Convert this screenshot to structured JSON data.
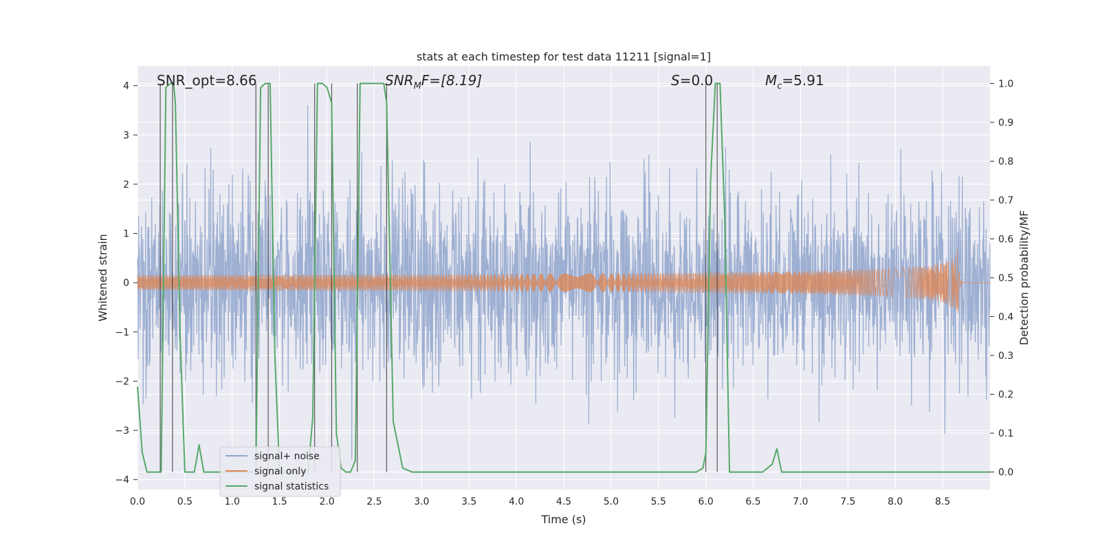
{
  "chart_data": {
    "type": "line",
    "title": "stats at each timestep for test data 11211 [signal=1]",
    "xlabel": "Time (s)",
    "ylabel_left": "Whitened strain",
    "ylabel_right": "Detection probability/MF",
    "xlim": [
      0.0,
      9.0
    ],
    "ylim_left": [
      -4.2,
      4.4
    ],
    "ylim_right": [
      -0.045,
      1.045
    ],
    "x_ticks": [
      "0.0",
      "0.5",
      "1.0",
      "1.5",
      "2.0",
      "2.5",
      "3.0",
      "3.5",
      "4.0",
      "4.5",
      "5.0",
      "5.5",
      "6.0",
      "6.5",
      "7.0",
      "7.5",
      "8.0",
      "8.5"
    ],
    "y_left_ticks": [
      "4",
      "3",
      "2",
      "1",
      "0",
      "−1",
      "−2",
      "−3",
      "−4"
    ],
    "y_right_ticks": [
      "1.0",
      "0.9",
      "0.8",
      "0.7",
      "0.6",
      "0.5",
      "0.4",
      "0.3",
      "0.2",
      "0.1",
      "0.0"
    ],
    "grid": true,
    "legend_position": "lower-left",
    "annotations": [
      {
        "prefix": "SNR_opt=8.66",
        "sub": "",
        "suffix": ""
      },
      {
        "prefix": "SNR",
        "sub": "M",
        "suffix": "F=[8.19]"
      },
      {
        "prefix": "S",
        "sub": "",
        "suffix": "=0.0"
      },
      {
        "prefix": "M",
        "sub": "c",
        "suffix": "=5.91"
      }
    ],
    "series": [
      {
        "name": "signal+ noise",
        "color": "#8fa4cc",
        "axis": "left",
        "kind": "noise",
        "envelope": 2.3,
        "peak": 3.6
      },
      {
        "name": "signal only",
        "color": "#dd8452",
        "axis": "left",
        "kind": "chirp",
        "amplitude_at_merger": 0.75,
        "merger_time": 8.66
      },
      {
        "name": "signal statistics",
        "color": "#55a868",
        "axis": "right",
        "x": [
          0.0,
          0.05,
          0.1,
          0.2,
          0.25,
          0.3,
          0.35,
          0.38,
          0.4,
          0.45,
          0.5,
          0.55,
          0.6,
          0.65,
          0.7,
          0.75,
          0.8,
          0.9,
          1.0,
          1.1,
          1.2,
          1.25,
          1.3,
          1.35,
          1.4,
          1.45,
          1.5,
          1.6,
          1.7,
          1.8,
          1.85,
          1.9,
          1.95,
          2.0,
          2.05,
          2.1,
          2.15,
          2.2,
          2.25,
          2.3,
          2.35,
          2.4,
          2.5,
          2.6,
          2.63,
          2.7,
          2.8,
          2.9,
          3.0,
          3.5,
          4.0,
          4.5,
          5.0,
          5.5,
          5.9,
          5.97,
          6.0,
          6.05,
          6.1,
          6.15,
          6.2,
          6.25,
          6.3,
          6.4,
          6.5,
          6.6,
          6.7,
          6.75,
          6.8,
          6.9,
          7.0,
          7.1,
          7.5,
          8.0,
          8.5,
          8.7,
          9.0
        ],
        "y": [
          0.22,
          0.05,
          0.0,
          0.0,
          0.0,
          0.99,
          1.0,
          1.0,
          0.95,
          0.35,
          0.0,
          0.0,
          0.0,
          0.07,
          0.0,
          0.0,
          0.0,
          0.0,
          0.0,
          0.0,
          0.0,
          0.0,
          0.99,
          1.0,
          1.0,
          0.3,
          0.0,
          0.0,
          0.0,
          0.0,
          0.14,
          1.0,
          1.0,
          0.99,
          0.95,
          0.1,
          0.01,
          0.0,
          0.0,
          0.03,
          1.0,
          1.0,
          1.0,
          1.0,
          0.95,
          0.13,
          0.01,
          0.0,
          0.0,
          0.0,
          0.0,
          0.0,
          0.0,
          0.0,
          0.0,
          0.01,
          0.05,
          0.75,
          1.0,
          1.0,
          0.65,
          0.0,
          0.0,
          0.0,
          0.0,
          0.0,
          0.02,
          0.06,
          0.0,
          0.0,
          0.0,
          0.0,
          0.0,
          0.0,
          0.0,
          0.0,
          0.0
        ]
      }
    ],
    "vertical_lines_x": [
      0.24,
      0.37,
      1.25,
      1.38,
      1.87,
      2.05,
      2.32,
      2.63,
      6.0,
      6.12
    ]
  }
}
